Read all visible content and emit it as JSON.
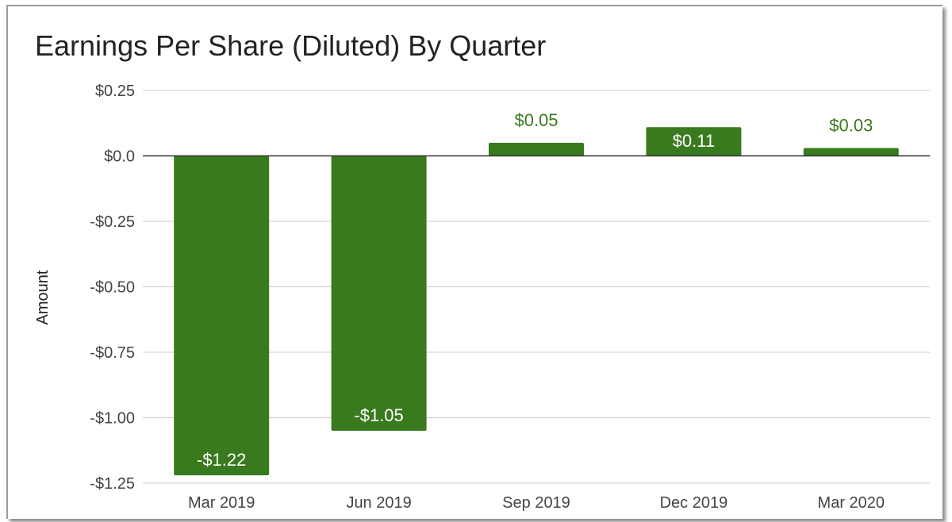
{
  "chart_data": {
    "type": "bar",
    "title": "Earnings Per Share (Diluted) By Quarter",
    "xlabel": "",
    "ylabel": "Amount",
    "categories": [
      "Mar 2019",
      "Jun 2019",
      "Sep 2019",
      "Dec 2019",
      "Mar 2020"
    ],
    "values": [
      -1.22,
      -1.05,
      0.05,
      0.11,
      0.03
    ],
    "data_labels": [
      "-$1.22",
      "-$1.05",
      "$0.05",
      "$0.11",
      "$0.03"
    ],
    "y_ticks": [
      0.25,
      0.0,
      -0.25,
      -0.5,
      -0.75,
      -1.0,
      -1.25
    ],
    "y_tick_labels": [
      "$0.25",
      "$0.0",
      "-$0.25",
      "-$0.50",
      "-$0.75",
      "-$1.00",
      "-$1.25"
    ],
    "ylim": [
      -1.25,
      0.25
    ],
    "grid": true,
    "legend": "none",
    "colors": {
      "bar": "#3a7a1e",
      "outside_label": "#3a7a1e",
      "zero_line": "#333333",
      "grid": "#cccccc"
    }
  }
}
